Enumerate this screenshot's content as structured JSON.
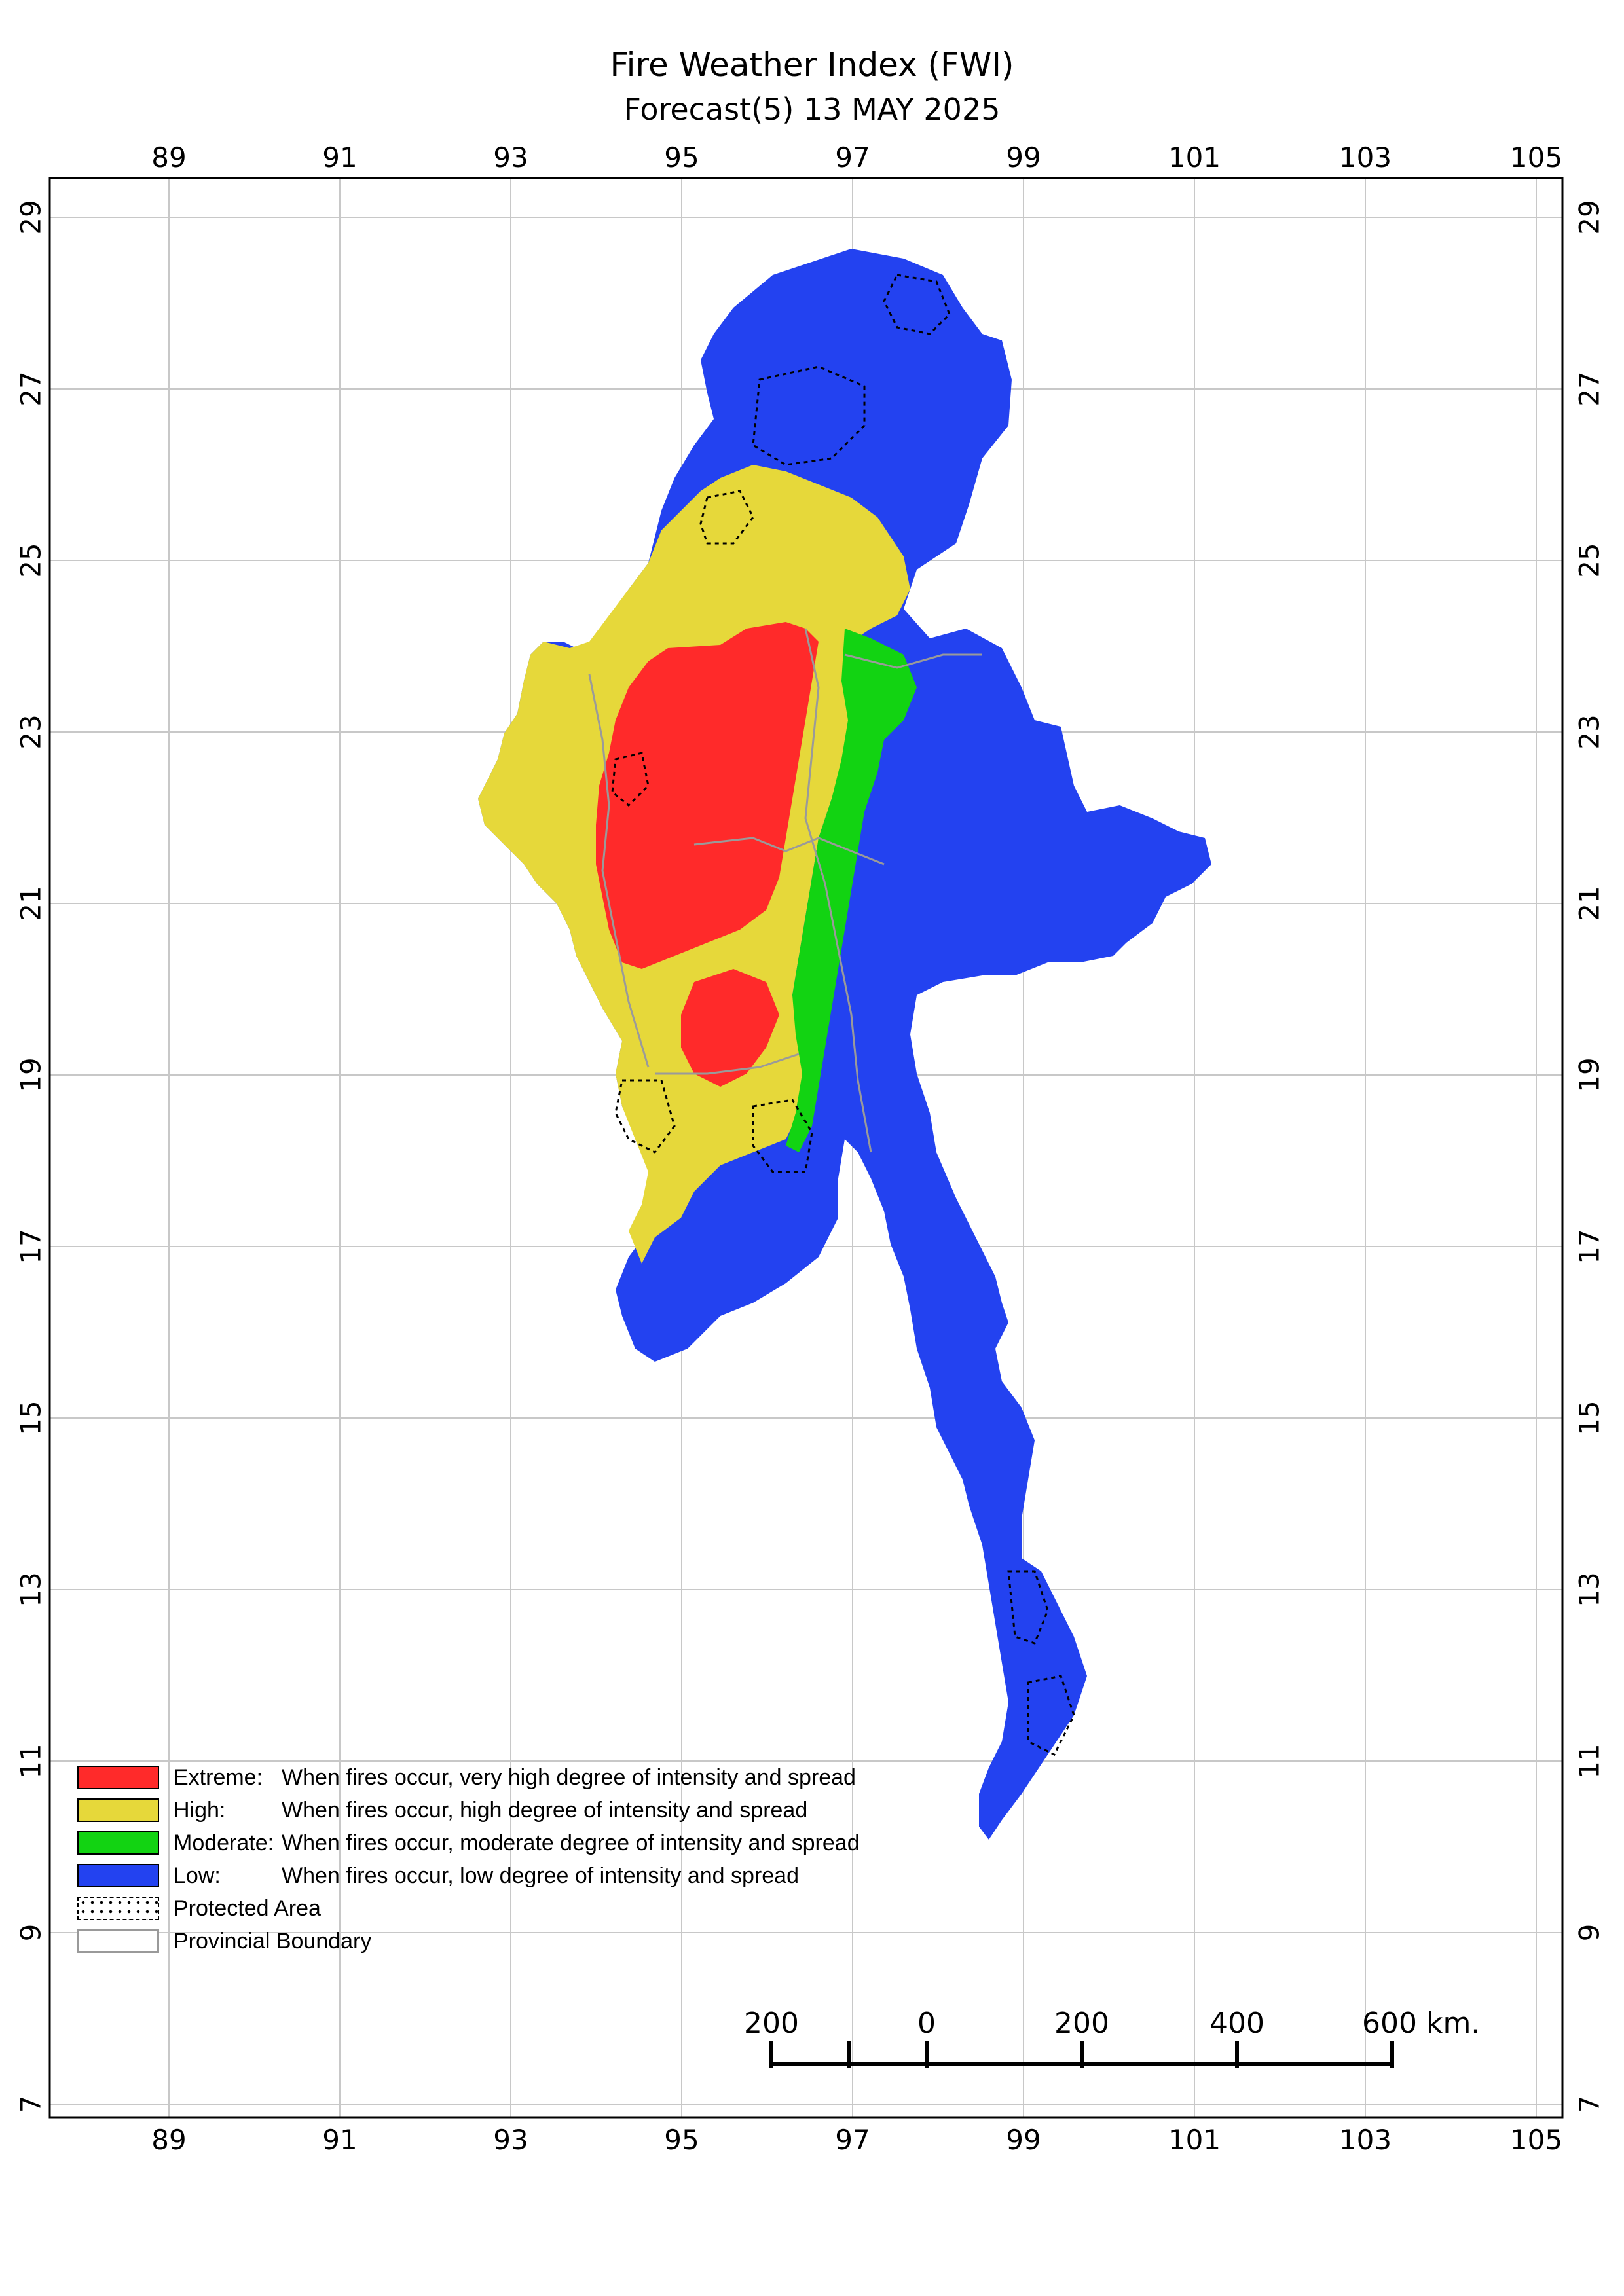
{
  "title": "Fire Weather Index (FWI)",
  "subtitle": "Forecast(5) 13 MAY 2025",
  "longitude_ticks": [
    "89",
    "91",
    "93",
    "95",
    "97",
    "99",
    "101",
    "103",
    "105"
  ],
  "latitude_ticks": [
    "29",
    "27",
    "25",
    "23",
    "21",
    "19",
    "17",
    "15",
    "13",
    "11",
    "9",
    "7"
  ],
  "legend": [
    {
      "label": "Extreme:",
      "description": "When fires occur, very high degree of intensity and spread",
      "color": "#ff2a2a"
    },
    {
      "label": "High:",
      "description": "When fires occur, high degree of intensity and spread",
      "color": "#e6d83a"
    },
    {
      "label": "Moderate:",
      "description": "When fires occur, moderate degree of intensity and spread",
      "color": "#12d312"
    },
    {
      "label": "Low:",
      "description": "When fires occur, low degree of intensity and spread",
      "color": "#2342f0"
    },
    {
      "label": "Protected Area",
      "description": "",
      "color": ""
    },
    {
      "label": "Provincial Boundary",
      "description": "",
      "color": ""
    }
  ],
  "scale_bar": {
    "labels": [
      "200",
      "0",
      "200",
      "400",
      "600 km."
    ]
  },
  "colors": {
    "extreme": "#ff2a2a",
    "high": "#e6d83a",
    "moderate": "#12d312",
    "low": "#2342f0",
    "boundary": "#9a9a9a",
    "grid": "#c8c8c8"
  }
}
